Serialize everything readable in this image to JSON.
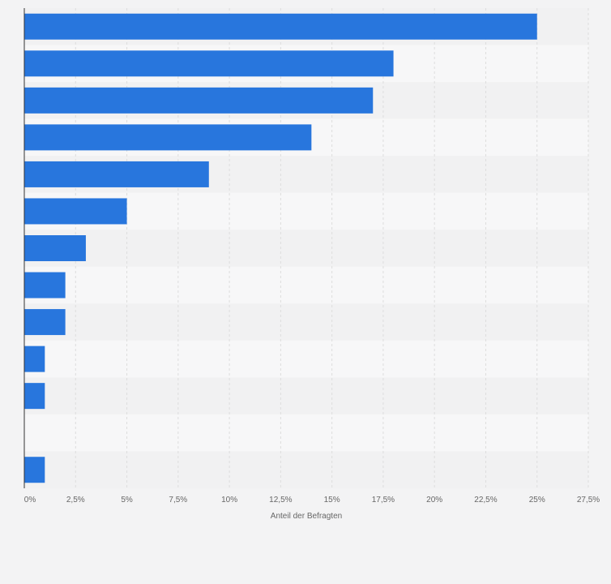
{
  "chart_data": {
    "type": "bar",
    "orientation": "horizontal",
    "categories": [
      "",
      "",
      "",
      "",
      "",
      "",
      "",
      "",
      "",
      "",
      "",
      "",
      ""
    ],
    "values": [
      25,
      18,
      17,
      14,
      9,
      5,
      3,
      2,
      2,
      1,
      1,
      0,
      1
    ],
    "xlabel": "Anteil der Befragten",
    "xlim": [
      0,
      27.5
    ],
    "xticks": [
      0,
      2.5,
      5,
      7.5,
      10,
      12.5,
      15,
      17.5,
      20,
      22.5,
      25,
      27.5
    ],
    "xtick_labels": [
      "0%",
      "2,5%",
      "5%",
      "7,5%",
      "10%",
      "12,5%",
      "15%",
      "17,5%",
      "20%",
      "22,5%",
      "25%",
      "27,5%"
    ],
    "grid": true,
    "bar_color": "#2876dd"
  },
  "colors": {
    "background": "#f3f3f4",
    "band_light": "#f7f7f8",
    "band_dark": "#f1f1f2",
    "gridline": "#dddddd",
    "axis": "#333333",
    "text": "#666666"
  }
}
